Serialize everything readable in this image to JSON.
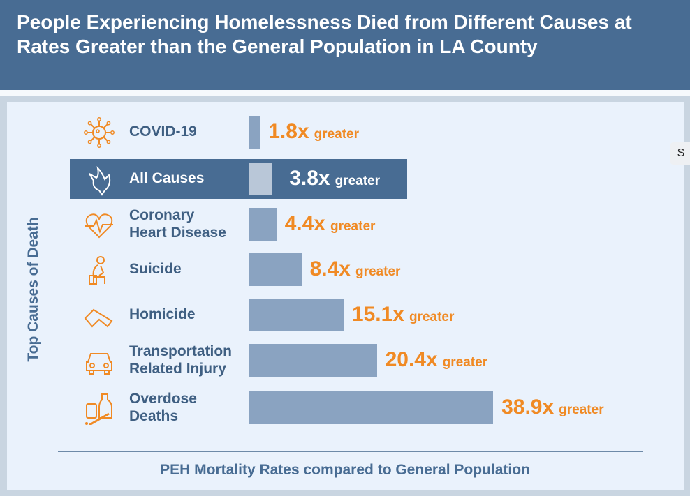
{
  "chart_data": {
    "type": "bar",
    "orientation": "horizontal",
    "title": "People Experiencing Homelessness Died from Different Causes at Rates Greater than the General Population in LA County",
    "ylabel": "Top Causes of Death",
    "xlabel": "PEH Mortality Rates compared to General Population",
    "categories": [
      "COVID-19",
      "All Causes",
      "Coronary Heart Disease",
      "Suicide",
      "Homicide",
      "Transportation Related Injury",
      "Overdose Deaths"
    ],
    "label_lines": [
      [
        "COVID-19"
      ],
      [
        "All Causes"
      ],
      [
        "Coronary",
        "Heart Disease"
      ],
      [
        "Suicide"
      ],
      [
        "Homicide"
      ],
      [
        "Transportation",
        "Related Injury"
      ],
      [
        "Overdose",
        "Deaths"
      ]
    ],
    "values": [
      1.8,
      3.8,
      4.4,
      8.4,
      15.1,
      20.4,
      38.9
    ],
    "value_labels": [
      "1.8x",
      "3.8x",
      "4.4x",
      "8.4x",
      "15.1x",
      "20.4x",
      "38.9x"
    ],
    "value_suffix": "greater",
    "highlighted": "All Causes",
    "icons": [
      "virus-icon",
      "dove-icon",
      "heart-pulse-icon",
      "grieving-person-icon",
      "gun-icon",
      "car-icon",
      "pill-bottle-syringe-icon"
    ],
    "colors": {
      "header": "#486c93",
      "bar": "#8aa3c1",
      "highlight_bar": "#b9c7d8",
      "value": "#f08a24",
      "panel": "#eaf2fc"
    }
  },
  "side_button": "S"
}
